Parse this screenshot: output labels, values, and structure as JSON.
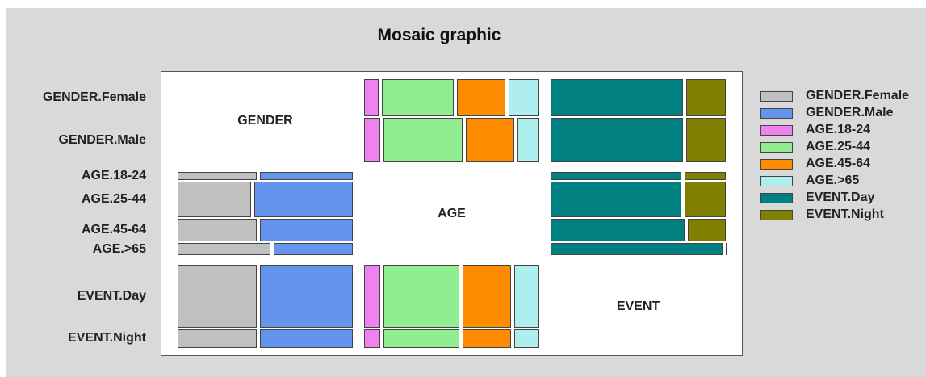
{
  "chart_data": {
    "type": "mosaic",
    "title": "Mosaic graphic",
    "row_labels": [
      "GENDER.Female",
      "GENDER.Male",
      "AGE.18-24",
      "AGE.25-44",
      "AGE.45-64",
      "AGE.>65",
      "EVENT.Day",
      "EVENT.Night"
    ],
    "variables": [
      "GENDER",
      "AGE",
      "EVENT"
    ],
    "levels": {
      "GENDER": [
        "GENDER.Female",
        "GENDER.Male"
      ],
      "AGE": [
        "AGE.18-24",
        "AGE.25-44",
        "AGE.45-64",
        "AGE.>65"
      ],
      "EVENT": [
        "EVENT.Day",
        "EVENT.Night"
      ]
    },
    "marginals": {
      "GENDER": [
        0.46,
        0.54
      ],
      "AGE": [
        0.11,
        0.44,
        0.29,
        0.16
      ],
      "EVENT": [
        0.76,
        0.24
      ]
    },
    "pairs": [
      {
        "rows": "GENDER",
        "cols": "AGE",
        "values": [
          [
            0.1,
            0.42,
            0.29,
            0.19
          ],
          [
            0.11,
            0.46,
            0.29,
            0.14
          ]
        ]
      },
      {
        "rows": "GENDER",
        "cols": "EVENT",
        "values": [
          [
            0.76,
            0.24
          ],
          [
            0.76,
            0.24
          ]
        ]
      },
      {
        "rows": "AGE",
        "cols": "GENDER",
        "values": [
          [
            0.46,
            0.54
          ],
          [
            0.43,
            0.57
          ],
          [
            0.46,
            0.54
          ],
          [
            0.54,
            0.46
          ]
        ]
      },
      {
        "rows": "AGE",
        "cols": "EVENT",
        "values": [
          [
            0.75,
            0.25
          ],
          [
            0.75,
            0.25
          ],
          [
            0.77,
            0.23
          ],
          [
            0.98,
            0.02
          ]
        ]
      },
      {
        "rows": "EVENT",
        "cols": "GENDER",
        "values": [
          [
            0.46,
            0.54
          ],
          [
            0.46,
            0.54
          ]
        ]
      },
      {
        "rows": "EVENT",
        "cols": "AGE",
        "values": [
          [
            0.11,
            0.44,
            0.29,
            0.16
          ],
          [
            0.11,
            0.44,
            0.29,
            0.16
          ]
        ]
      }
    ],
    "legend": [
      {
        "label": "GENDER.Female",
        "color": "#c0c0c0"
      },
      {
        "label": "GENDER.Male",
        "color": "#6495ed"
      },
      {
        "label": "AGE.18-24",
        "color": "#ee82ee"
      },
      {
        "label": "AGE.25-44",
        "color": "#90ee90"
      },
      {
        "label": "AGE.45-64",
        "color": "#ff8c00"
      },
      {
        "label": "AGE.>65",
        "color": "#afeeee"
      },
      {
        "label": "EVENT.Day",
        "color": "#008080"
      },
      {
        "label": "EVENT.Night",
        "color": "#808000"
      }
    ],
    "legend_position": "right"
  }
}
